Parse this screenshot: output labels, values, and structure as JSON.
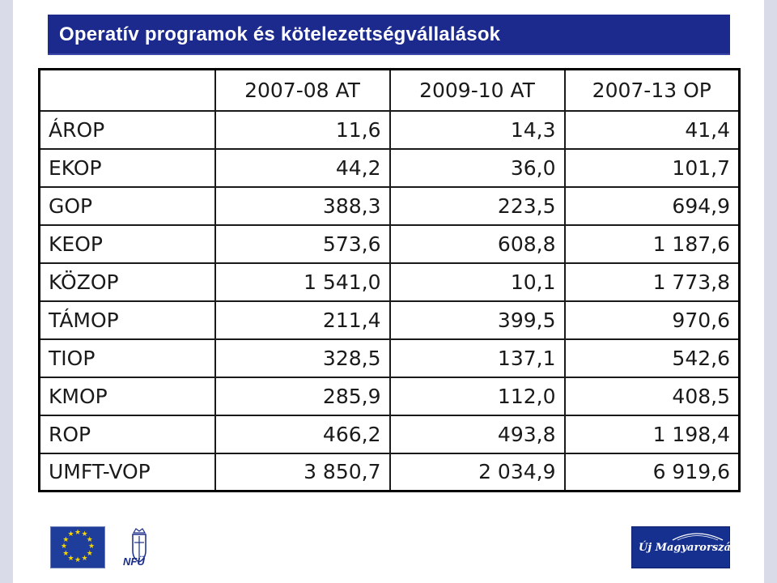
{
  "title": "Operatív programok és kötelezettségvállalások",
  "table": {
    "headers": [
      "",
      "2007-08 AT",
      "2009-10 AT",
      "2007-13 OP"
    ],
    "rows": [
      {
        "label": "ÁROP",
        "values": [
          "11,6",
          "14,3",
          "41,4"
        ]
      },
      {
        "label": "EKOP",
        "values": [
          "44,2",
          "36,0",
          "101,7"
        ]
      },
      {
        "label": "GOP",
        "values": [
          "388,3",
          "223,5",
          "694,9"
        ]
      },
      {
        "label": "KEOP",
        "values": [
          "573,6",
          "608,8",
          "1 187,6"
        ]
      },
      {
        "label": "KÖZOP",
        "values": [
          "1 541,0",
          "10,1",
          "1 773,8"
        ]
      },
      {
        "label": "TÁMOP",
        "values": [
          "211,4",
          "399,5",
          "970,6"
        ]
      },
      {
        "label": "TIOP",
        "values": [
          "328,5",
          "137,1",
          "542,6"
        ]
      },
      {
        "label": "KMOP",
        "values": [
          "285,9",
          "112,0",
          "408,5"
        ]
      },
      {
        "label": "ROP",
        "values": [
          "466,2",
          "493,8",
          "1 198,4"
        ]
      },
      {
        "label": "UMFT-VOP",
        "values": [
          "3 850,7",
          "2 034,9",
          "6 919,6"
        ]
      }
    ]
  },
  "logos": {
    "nfu_text": "NFÜ",
    "uj_text": "Új Magyarország"
  },
  "colors": {
    "title_bg": "#1b2a8c",
    "eu_blue": "#1f3d9a",
    "eu_star": "#f5d400"
  }
}
